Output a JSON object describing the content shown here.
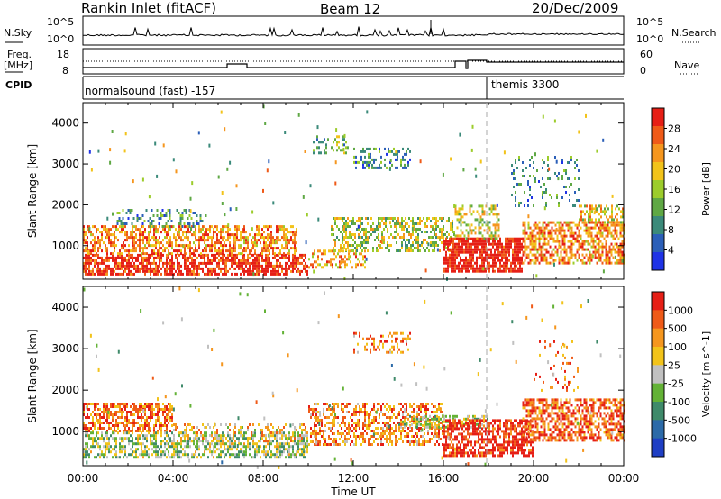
{
  "header": {
    "station": "Rankin Inlet (fitACF)",
    "beam": "Beam 12",
    "date": "20/Dec/2009"
  },
  "noise_panel": {
    "left_label": "N.Sky",
    "left_ticks": [
      "10^5",
      "10^0"
    ],
    "right_label": "N.Search",
    "right_ticks": [
      "10^5",
      "10^0"
    ]
  },
  "freq_panel": {
    "left_label_1": "Freq.",
    "left_label_2": "[MHz]",
    "left_ticks": [
      "18",
      "8"
    ],
    "right_label": "Nave",
    "right_ticks": [
      "60",
      "0"
    ]
  },
  "cpid_panel": {
    "label": "CPID",
    "mode_1": "normalsound (fast) -157",
    "mode_2": "themis 3300"
  },
  "chart_data": [
    {
      "type": "heatmap",
      "name": "power",
      "ylabel": "Slant Range [km]",
      "yticks": [
        1000,
        2000,
        3000,
        4000
      ],
      "ylim": [
        180,
        4500
      ],
      "xlabel": "",
      "xlim_hours": [
        0,
        24
      ],
      "colorbar": {
        "label": "Power [dB]",
        "ticks": [
          "28",
          "24",
          "20",
          "16",
          "12",
          "8",
          "4"
        ],
        "range": [
          0,
          30
        ],
        "colors": [
          "#1f33e6",
          "#2b5fb8",
          "#3b8a7a",
          "#5fa844",
          "#9ccc2b",
          "#f2c31a",
          "#f5961e",
          "#ef5a18",
          "#e61f16"
        ]
      },
      "blocks": [
        {
          "t0": 0.0,
          "t1": 10.0,
          "r0": 300,
          "r1": 800,
          "level": 0.95,
          "density": 0.7
        },
        {
          "t0": 0.0,
          "t1": 9.5,
          "r0": 800,
          "r1": 1500,
          "level": 0.75,
          "density": 0.55
        },
        {
          "t0": 1.5,
          "t1": 5.5,
          "r0": 1500,
          "r1": 1900,
          "level": 0.3,
          "density": 0.3
        },
        {
          "t0": 10.0,
          "t1": 12.5,
          "r0": 500,
          "r1": 900,
          "level": 0.7,
          "density": 0.4
        },
        {
          "t0": 11.0,
          "t1": 16.5,
          "r0": 900,
          "r1": 1700,
          "level": 0.5,
          "density": 0.45
        },
        {
          "t0": 12.0,
          "t1": 14.5,
          "r0": 2900,
          "r1": 3400,
          "level": 0.3,
          "density": 0.3
        },
        {
          "t0": 10.2,
          "t1": 11.8,
          "r0": 3300,
          "r1": 3700,
          "level": 0.4,
          "density": 0.3
        },
        {
          "t0": 16.0,
          "t1": 19.5,
          "r0": 400,
          "r1": 1200,
          "level": 1.0,
          "density": 0.8
        },
        {
          "t0": 16.5,
          "t1": 18.5,
          "r0": 1200,
          "r1": 2000,
          "level": 0.55,
          "density": 0.35
        },
        {
          "t0": 19.5,
          "t1": 24.0,
          "r0": 600,
          "r1": 1600,
          "level": 0.75,
          "density": 0.6
        },
        {
          "t0": 19.0,
          "t1": 22.0,
          "r0": 2000,
          "r1": 3200,
          "level": 0.3,
          "density": 0.15
        },
        {
          "t0": 22.0,
          "t1": 24.0,
          "r0": 1600,
          "r1": 2000,
          "level": 0.6,
          "density": 0.45
        }
      ]
    },
    {
      "type": "heatmap",
      "name": "velocity",
      "ylabel": "Slant Range [km]",
      "yticks": [
        1000,
        2000,
        3000,
        4000
      ],
      "ylim": [
        180,
        4500
      ],
      "xlabel": "Time UT",
      "xticks": [
        "00:00",
        "04:00",
        "08:00",
        "12:00",
        "16:00",
        "20:00",
        "00:00"
      ],
      "xlim_hours": [
        0,
        24
      ],
      "colorbar": {
        "label": "Velocity [m s^-1]",
        "ticks": [
          "1000",
          "500",
          "100",
          "25",
          "-25",
          "-100",
          "-500",
          "-1000"
        ],
        "colors": [
          "#1f3fc4",
          "#2c6aa8",
          "#3f8a6a",
          "#63b236",
          "#c0c0c0",
          "#f2c31a",
          "#f5961e",
          "#ef5a18",
          "#e61f16"
        ]
      },
      "blocks": [
        {
          "t0": 0.0,
          "t1": 4.0,
          "r0": 1000,
          "r1": 1700,
          "level": 0.8,
          "density": 0.6
        },
        {
          "t0": 0.0,
          "t1": 10.0,
          "r0": 400,
          "r1": 1000,
          "level": 0.45,
          "density": 0.55
        },
        {
          "t0": 4.0,
          "t1": 10.0,
          "r0": 800,
          "r1": 1200,
          "level": 0.65,
          "density": 0.3
        },
        {
          "t0": 10.0,
          "t1": 16.0,
          "r0": 700,
          "r1": 1700,
          "level": 0.75,
          "density": 0.45
        },
        {
          "t0": 12.0,
          "t1": 14.5,
          "r0": 2900,
          "r1": 3400,
          "level": 0.75,
          "density": 0.25
        },
        {
          "t0": 14.0,
          "t1": 18.0,
          "r0": 1100,
          "r1": 1400,
          "level": 0.5,
          "density": 0.5
        },
        {
          "t0": 16.0,
          "t1": 20.0,
          "r0": 400,
          "r1": 1300,
          "level": 0.95,
          "density": 0.65
        },
        {
          "t0": 19.5,
          "t1": 24.0,
          "r0": 800,
          "r1": 1800,
          "level": 0.85,
          "density": 0.6
        },
        {
          "t0": 20.0,
          "t1": 22.0,
          "r0": 2000,
          "r1": 3200,
          "level": 0.8,
          "density": 0.12
        }
      ]
    }
  ]
}
